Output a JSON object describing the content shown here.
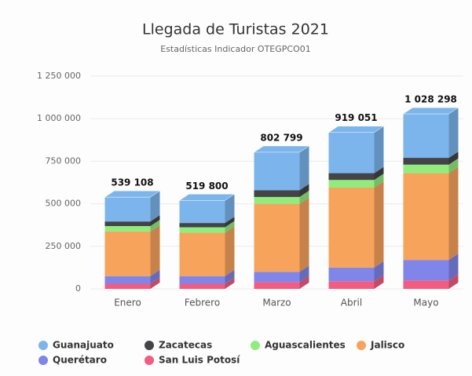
{
  "chart_data": {
    "type": "bar3d_stacked",
    "title": "Llegada de Turistas 2021",
    "subtitle": "Estadísticas Indicador OTEGPCO01",
    "categories": [
      "Enero",
      "Febrero",
      "Marzo",
      "Abril",
      "Mayo"
    ],
    "series": [
      {
        "name": "San Luis Potosí",
        "color": "#f15c80",
        "values": [
          30000,
          30000,
          40000,
          45000,
          50000
        ]
      },
      {
        "name": "Querétaro",
        "color": "#8085e9",
        "values": [
          45000,
          45000,
          60000,
          80000,
          120000
        ]
      },
      {
        "name": "Jalisco",
        "color": "#f7a35c",
        "values": [
          262000,
          255000,
          400000,
          470000,
          510000
        ]
      },
      {
        "name": "Aguascalientes",
        "color": "#90ed7d",
        "values": [
          32000,
          32000,
          40000,
          45000,
          50000
        ]
      },
      {
        "name": "Zacatecas",
        "color": "#434348",
        "values": [
          27000,
          25000,
          40000,
          40000,
          40000
        ]
      },
      {
        "name": "Guanajuato",
        "color": "#7cb5ec",
        "values": [
          143108,
          132800,
          222799,
          239051,
          258298
        ]
      }
    ],
    "totals": [
      539108,
      519800,
      802799,
      919051,
      1028298
    ],
    "value_labels": [
      "539 108",
      "519 800",
      "802 799",
      "919 051",
      "1 028 298"
    ],
    "legend_order": [
      5,
      4,
      3,
      2,
      1,
      0
    ],
    "ylim": [
      0,
      1250000
    ],
    "yticks": [
      0,
      {
        "value": 250000,
        "label": "250 000"
      },
      {
        "value": 500000,
        "label": "500 000"
      },
      {
        "value": 750000,
        "label": "750 000"
      },
      {
        "value": 1000000,
        "label": "1 000 000"
      },
      {
        "value": 1250000,
        "label": "1 250 000"
      }
    ],
    "grid": true
  }
}
